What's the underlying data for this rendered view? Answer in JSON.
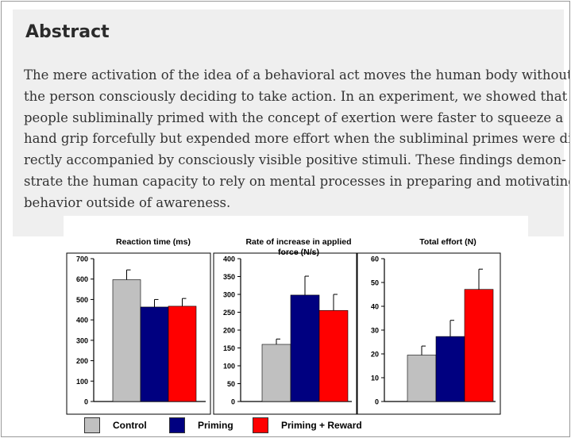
{
  "abstract": {
    "title": "Abstract",
    "lines": [
      "The mere activation of the idea of a behavioral act moves the human body without",
      "the person consciously deciding to take action. In an experiment, we showed that",
      "people subliminally primed with the concept of exertion were faster to squeeze a",
      "hand grip forcefully but expended more effort when the subliminal primes were di-",
      "rectly accompanied by consciously visible positive stimuli. These findings demon-",
      "strate the human capacity to rely on mental processes in preparing and motivating",
      "behavior outside of awareness."
    ]
  },
  "colors": {
    "control": "#c0c0c0",
    "priming": "#000080",
    "priming_reward": "#ff0000",
    "abstract_bg": "#efefef"
  },
  "legend": {
    "control": "Control",
    "priming": "Priming",
    "priming_reward": "Priming + Reward"
  },
  "chart_data": [
    {
      "type": "bar",
      "title": "Reaction time (ms)",
      "categories": [
        "Control",
        "Priming",
        "Priming + Reward"
      ],
      "values": [
        597,
        463,
        467
      ],
      "error_bars": [
        48,
        37,
        38
      ],
      "ylim": [
        0,
        700
      ],
      "yticks": [
        0,
        100,
        200,
        300,
        400,
        500,
        600,
        700
      ],
      "grid": false
    },
    {
      "type": "bar",
      "title": "Rate of increase in applied force (N/s)",
      "categories": [
        "Control",
        "Priming",
        "Priming + Reward"
      ],
      "values": [
        160,
        298,
        255
      ],
      "error_bars": [
        15,
        53,
        45
      ],
      "ylim": [
        0,
        400
      ],
      "yticks": [
        0,
        50,
        100,
        150,
        200,
        250,
        300,
        350,
        400
      ],
      "grid": false
    },
    {
      "type": "bar",
      "title": "Total effort (N)",
      "categories": [
        "Control",
        "Priming",
        "Priming + Reward"
      ],
      "values": [
        19.5,
        27.3,
        47.1
      ],
      "error_bars": [
        3.8,
        6.8,
        8.5
      ],
      "ylim": [
        0,
        60
      ],
      "yticks": [
        0,
        10,
        20,
        30,
        40,
        50,
        60
      ],
      "grid": false
    }
  ]
}
